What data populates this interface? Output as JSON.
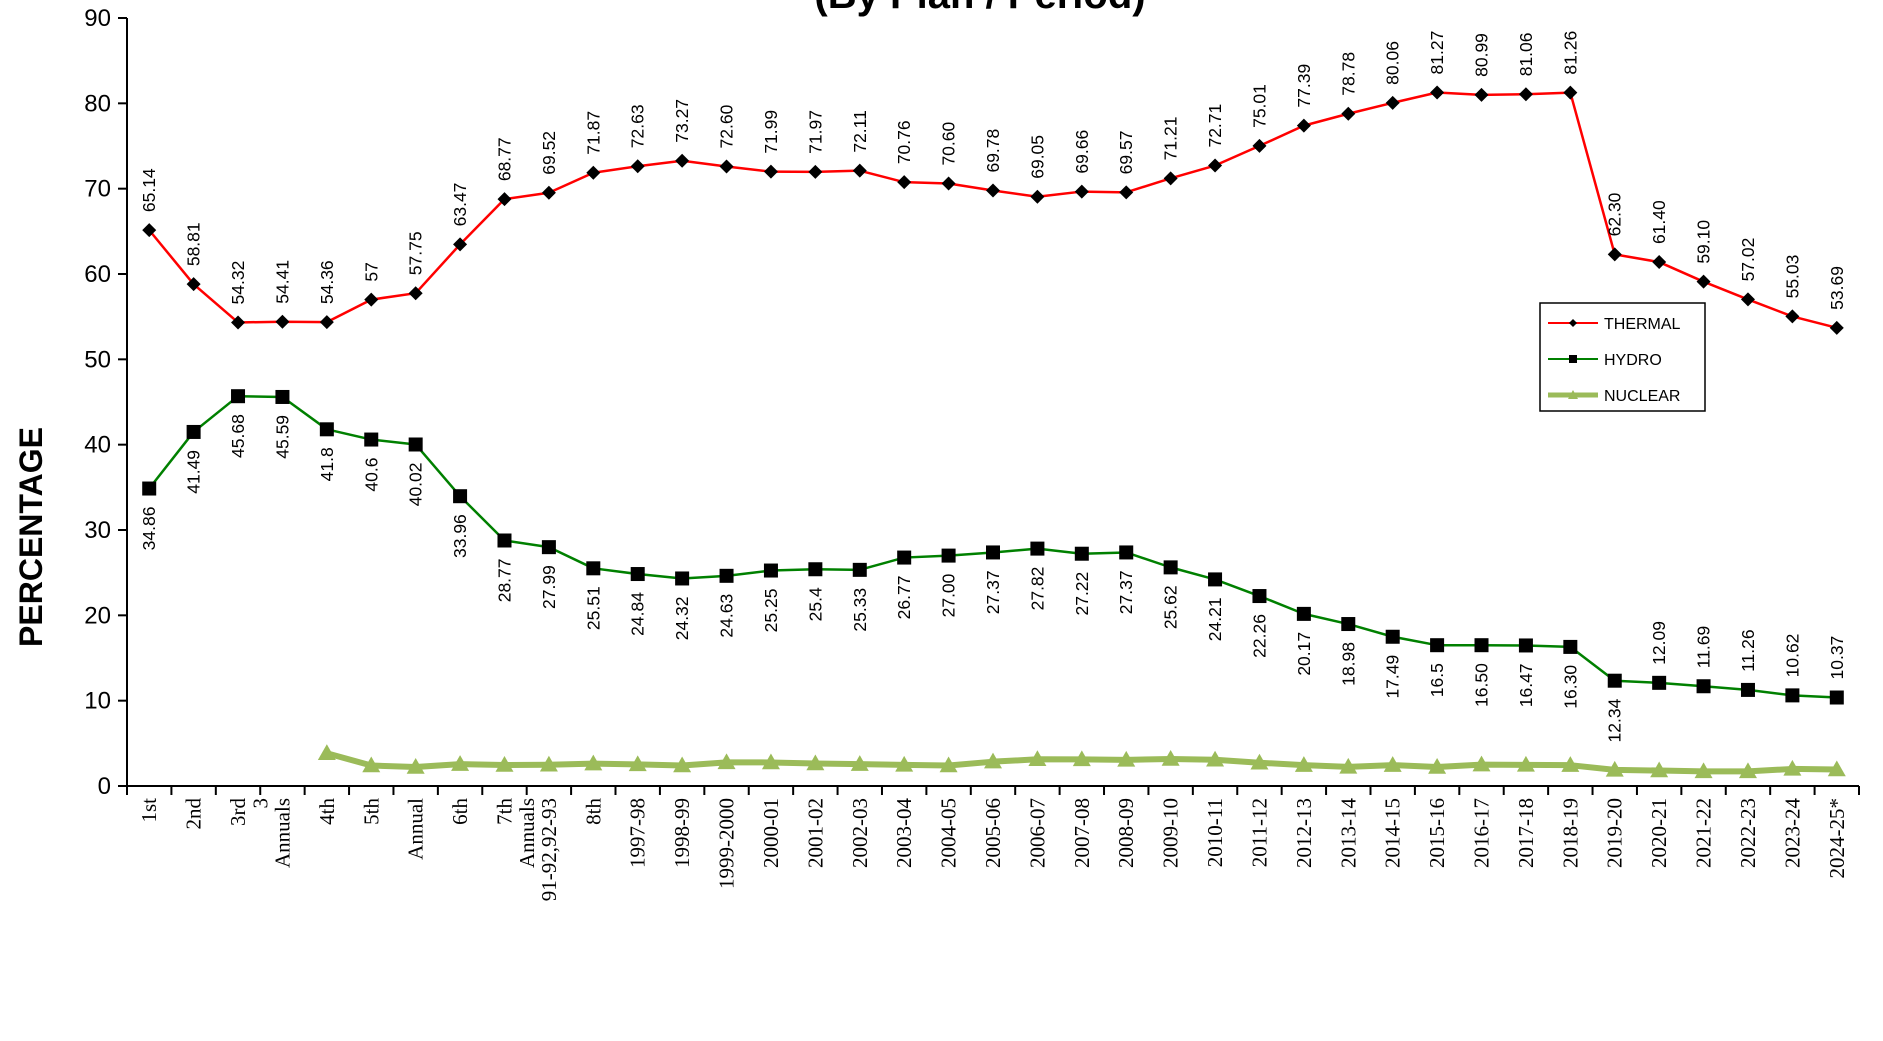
{
  "chart_data": {
    "type": "line",
    "title": "(By Plan / Period)",
    "xlabel": "",
    "ylabel": "PERCENTAGE",
    "ylim": [
      0,
      90
    ],
    "yticks": [
      0,
      10,
      20,
      30,
      40,
      50,
      60,
      70,
      80,
      90
    ],
    "grid": false,
    "legend_position": "right",
    "categories": [
      "1st",
      "2nd",
      "3rd",
      "3 Annuals",
      "4th",
      "5th",
      "Annual",
      "6th",
      "7th",
      "Annuals 91-92,92-93",
      "8th",
      "1997-98",
      "1998-99",
      "1999-2000",
      "2000-01",
      "2001-02",
      "2002-03",
      "2003-04",
      "2004-05",
      "2005-06",
      "2006-07",
      "2007-08",
      "2008-09",
      "2009-10",
      "2010-11",
      "2011-12",
      "2012-13",
      "2013-14",
      "2014-15",
      "2015-16",
      "2016-17",
      "2017-18",
      "2018-19",
      "2019-20",
      "2020-21",
      "2021-22",
      "2022-23",
      "2023-24",
      "2024-25*"
    ],
    "series": [
      {
        "name": "THERMAL",
        "color": "#ff0000",
        "marker": "diamond",
        "values": [
          65.14,
          58.81,
          54.32,
          54.41,
          54.36,
          57,
          57.75,
          63.47,
          68.77,
          69.52,
          71.87,
          72.63,
          73.27,
          72.6,
          71.99,
          71.97,
          72.11,
          70.76,
          70.6,
          69.78,
          69.05,
          69.66,
          69.57,
          71.21,
          72.71,
          75.01,
          77.39,
          78.78,
          80.06,
          81.27,
          80.99,
          81.06,
          81.26,
          62.3,
          61.4,
          59.1,
          57.02,
          55.03,
          53.69
        ],
        "labels": [
          "65.14",
          "58.81",
          "54.32",
          "54.41",
          "54.36",
          "57",
          "57.75",
          "63.47",
          "68.77",
          "69.52",
          "71.87",
          "72.63",
          "73.27",
          "72.60",
          "71.99",
          "71.97",
          "72.11",
          "70.76",
          "70.60",
          "69.78",
          "69.05",
          "69.66",
          "69.57",
          "71.21",
          "72.71",
          "75.01",
          "77.39",
          "78.78",
          "80.06",
          "81.27",
          "80.99",
          "81.06",
          "81.26",
          "62.30",
          "61.40",
          "59.10",
          "57.02",
          "55.03",
          "53.69"
        ]
      },
      {
        "name": "HYDRO",
        "color": "#008000",
        "marker": "square",
        "values": [
          34.86,
          41.49,
          45.68,
          45.59,
          41.8,
          40.6,
          40.02,
          33.96,
          28.77,
          27.99,
          25.51,
          24.84,
          24.32,
          24.63,
          25.25,
          25.4,
          25.33,
          26.77,
          27.0,
          27.37,
          27.82,
          27.22,
          27.37,
          25.62,
          24.21,
          22.26,
          20.17,
          18.98,
          17.49,
          16.5,
          16.5,
          16.47,
          16.3,
          12.34,
          12.09,
          11.69,
          11.26,
          10.62,
          10.37
        ],
        "labels": [
          "34.86",
          "41.49",
          "45.68",
          "45.59",
          "41.8",
          "40.6",
          "40.02",
          "33.96",
          "28.77",
          "27.99",
          "25.51",
          "24.84",
          "24.32",
          "24.63",
          "25.25",
          "25.4",
          "25.33",
          "26.77",
          "27.00",
          "27.37",
          "27.82",
          "27.22",
          "27.37",
          "25.62",
          "24.21",
          "22.26",
          "20.17",
          "18.98",
          "17.49",
          "16.5",
          "16.50",
          "16.47",
          "16.30",
          "12.34",
          "12.09",
          "11.69",
          "11.26",
          "10.62",
          "10.37"
        ]
      },
      {
        "name": "NUCLEAR",
        "color": "#9bbb59",
        "marker": "triangle",
        "values": [
          null,
          null,
          null,
          null,
          3.84,
          2.4,
          2.23,
          2.57,
          2.46,
          2.49,
          2.62,
          2.53,
          2.4,
          2.77,
          2.76,
          2.63,
          2.56,
          2.47,
          2.4,
          2.85,
          3.13,
          3.12,
          3.06,
          3.17,
          3.08,
          2.73,
          2.44,
          2.24,
          2.45,
          2.23,
          2.51,
          2.47,
          2.44,
          1.89,
          1.81,
          1.71,
          1.72,
          2.0,
          1.94
        ]
      }
    ]
  }
}
